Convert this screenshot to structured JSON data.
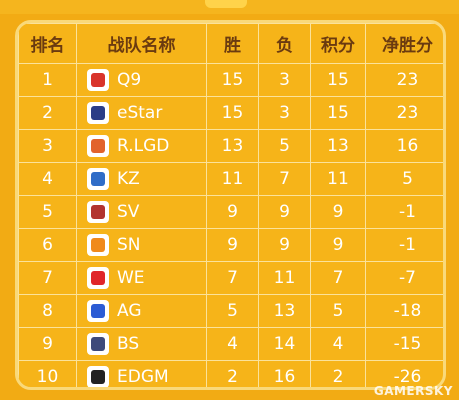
{
  "table": {
    "headers": {
      "rank": "排名",
      "team": "战队名称",
      "wins": "胜",
      "losses": "负",
      "points": "积分",
      "net_wins": "净胜分"
    },
    "rows": [
      {
        "rank": "1",
        "team": "Q9",
        "logo_color": "#d9342b",
        "wins": "15",
        "losses": "3",
        "points": "15",
        "net_wins": "23"
      },
      {
        "rank": "2",
        "team": "eStar",
        "logo_color": "#2b3d86",
        "wins": "15",
        "losses": "3",
        "points": "15",
        "net_wins": "23"
      },
      {
        "rank": "3",
        "team": "R.LGD",
        "logo_color": "#e2632c",
        "wins": "13",
        "losses": "5",
        "points": "13",
        "net_wins": "16"
      },
      {
        "rank": "4",
        "team": "KZ",
        "logo_color": "#2f6cc7",
        "wins": "11",
        "losses": "7",
        "points": "11",
        "net_wins": "5"
      },
      {
        "rank": "5",
        "team": "SV",
        "logo_color": "#b2342f",
        "wins": "9",
        "losses": "9",
        "points": "9",
        "net_wins": "-1"
      },
      {
        "rank": "6",
        "team": "SN",
        "logo_color": "#f08a1c",
        "wins": "9",
        "losses": "9",
        "points": "9",
        "net_wins": "-1"
      },
      {
        "rank": "7",
        "team": "WE",
        "logo_color": "#e0262a",
        "wins": "7",
        "losses": "11",
        "points": "7",
        "net_wins": "-7"
      },
      {
        "rank": "8",
        "team": "AG",
        "logo_color": "#2b5bd4",
        "wins": "5",
        "losses": "13",
        "points": "5",
        "net_wins": "-18"
      },
      {
        "rank": "9",
        "team": "BS",
        "logo_color": "#3e4a7a",
        "wins": "4",
        "losses": "14",
        "points": "4",
        "net_wins": "-15"
      },
      {
        "rank": "10",
        "team": "EDGM",
        "logo_color": "#222222",
        "wins": "2",
        "losses": "16",
        "points": "2",
        "net_wins": "-26"
      }
    ]
  },
  "colors": {
    "background": "#f2ab14",
    "header_text": "#6b3b10",
    "cell_text": "#ffffff",
    "grid": "#fbe29a"
  },
  "watermark": "GAMERSKY"
}
